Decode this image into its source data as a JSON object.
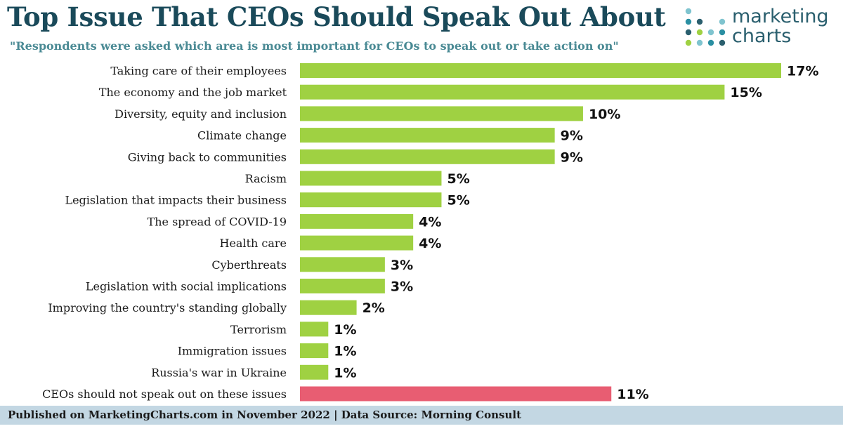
{
  "colors": {
    "title": "#1a4a5a",
    "subtitle": "#4a8a94",
    "bar": "#9fd142",
    "highlight_bar": "#e85d72",
    "footer_bg": "#c3d7e3"
  },
  "logo": {
    "line1": "marketing",
    "line2": "charts"
  },
  "footer": {
    "text": "Published on MarketingCharts.com in November 2022 | Data Source: Morning Consult"
  },
  "chart_data": {
    "type": "bar",
    "orientation": "horizontal",
    "title": "Top Issue That CEOs Should Speak Out About",
    "subtitle": "\"Respondents were asked which area is most important for CEOs to speak out or take action on\"",
    "xlabel": "",
    "ylabel": "",
    "unit": "%",
    "grid": false,
    "xlim": [
      0,
      17
    ],
    "categories": [
      "Taking care of their employees",
      "The economy and the job market",
      "Diversity, equity and inclusion",
      "Climate change",
      "Giving back to communities",
      "Racism",
      "Legislation that impacts their business",
      "The spread of COVID-19",
      "Health care",
      "Cyberthreats",
      "Legislation with social implications",
      "Improving the country's standing globally",
      "Terrorism",
      "Immigration issues",
      "Russia's war in Ukraine",
      "CEOs should not speak out on these issues"
    ],
    "values": [
      17,
      15,
      10,
      9,
      9,
      5,
      5,
      4,
      4,
      3,
      3,
      2,
      1,
      1,
      1,
      11
    ],
    "data_labels": [
      "17%",
      "15%",
      "10%",
      "9%",
      "9%",
      "5%",
      "5%",
      "4%",
      "4%",
      "3%",
      "3%",
      "2%",
      "1%",
      "1%",
      "1%",
      "11%"
    ],
    "highlight_category": "CEOs should not speak out on these issues"
  }
}
